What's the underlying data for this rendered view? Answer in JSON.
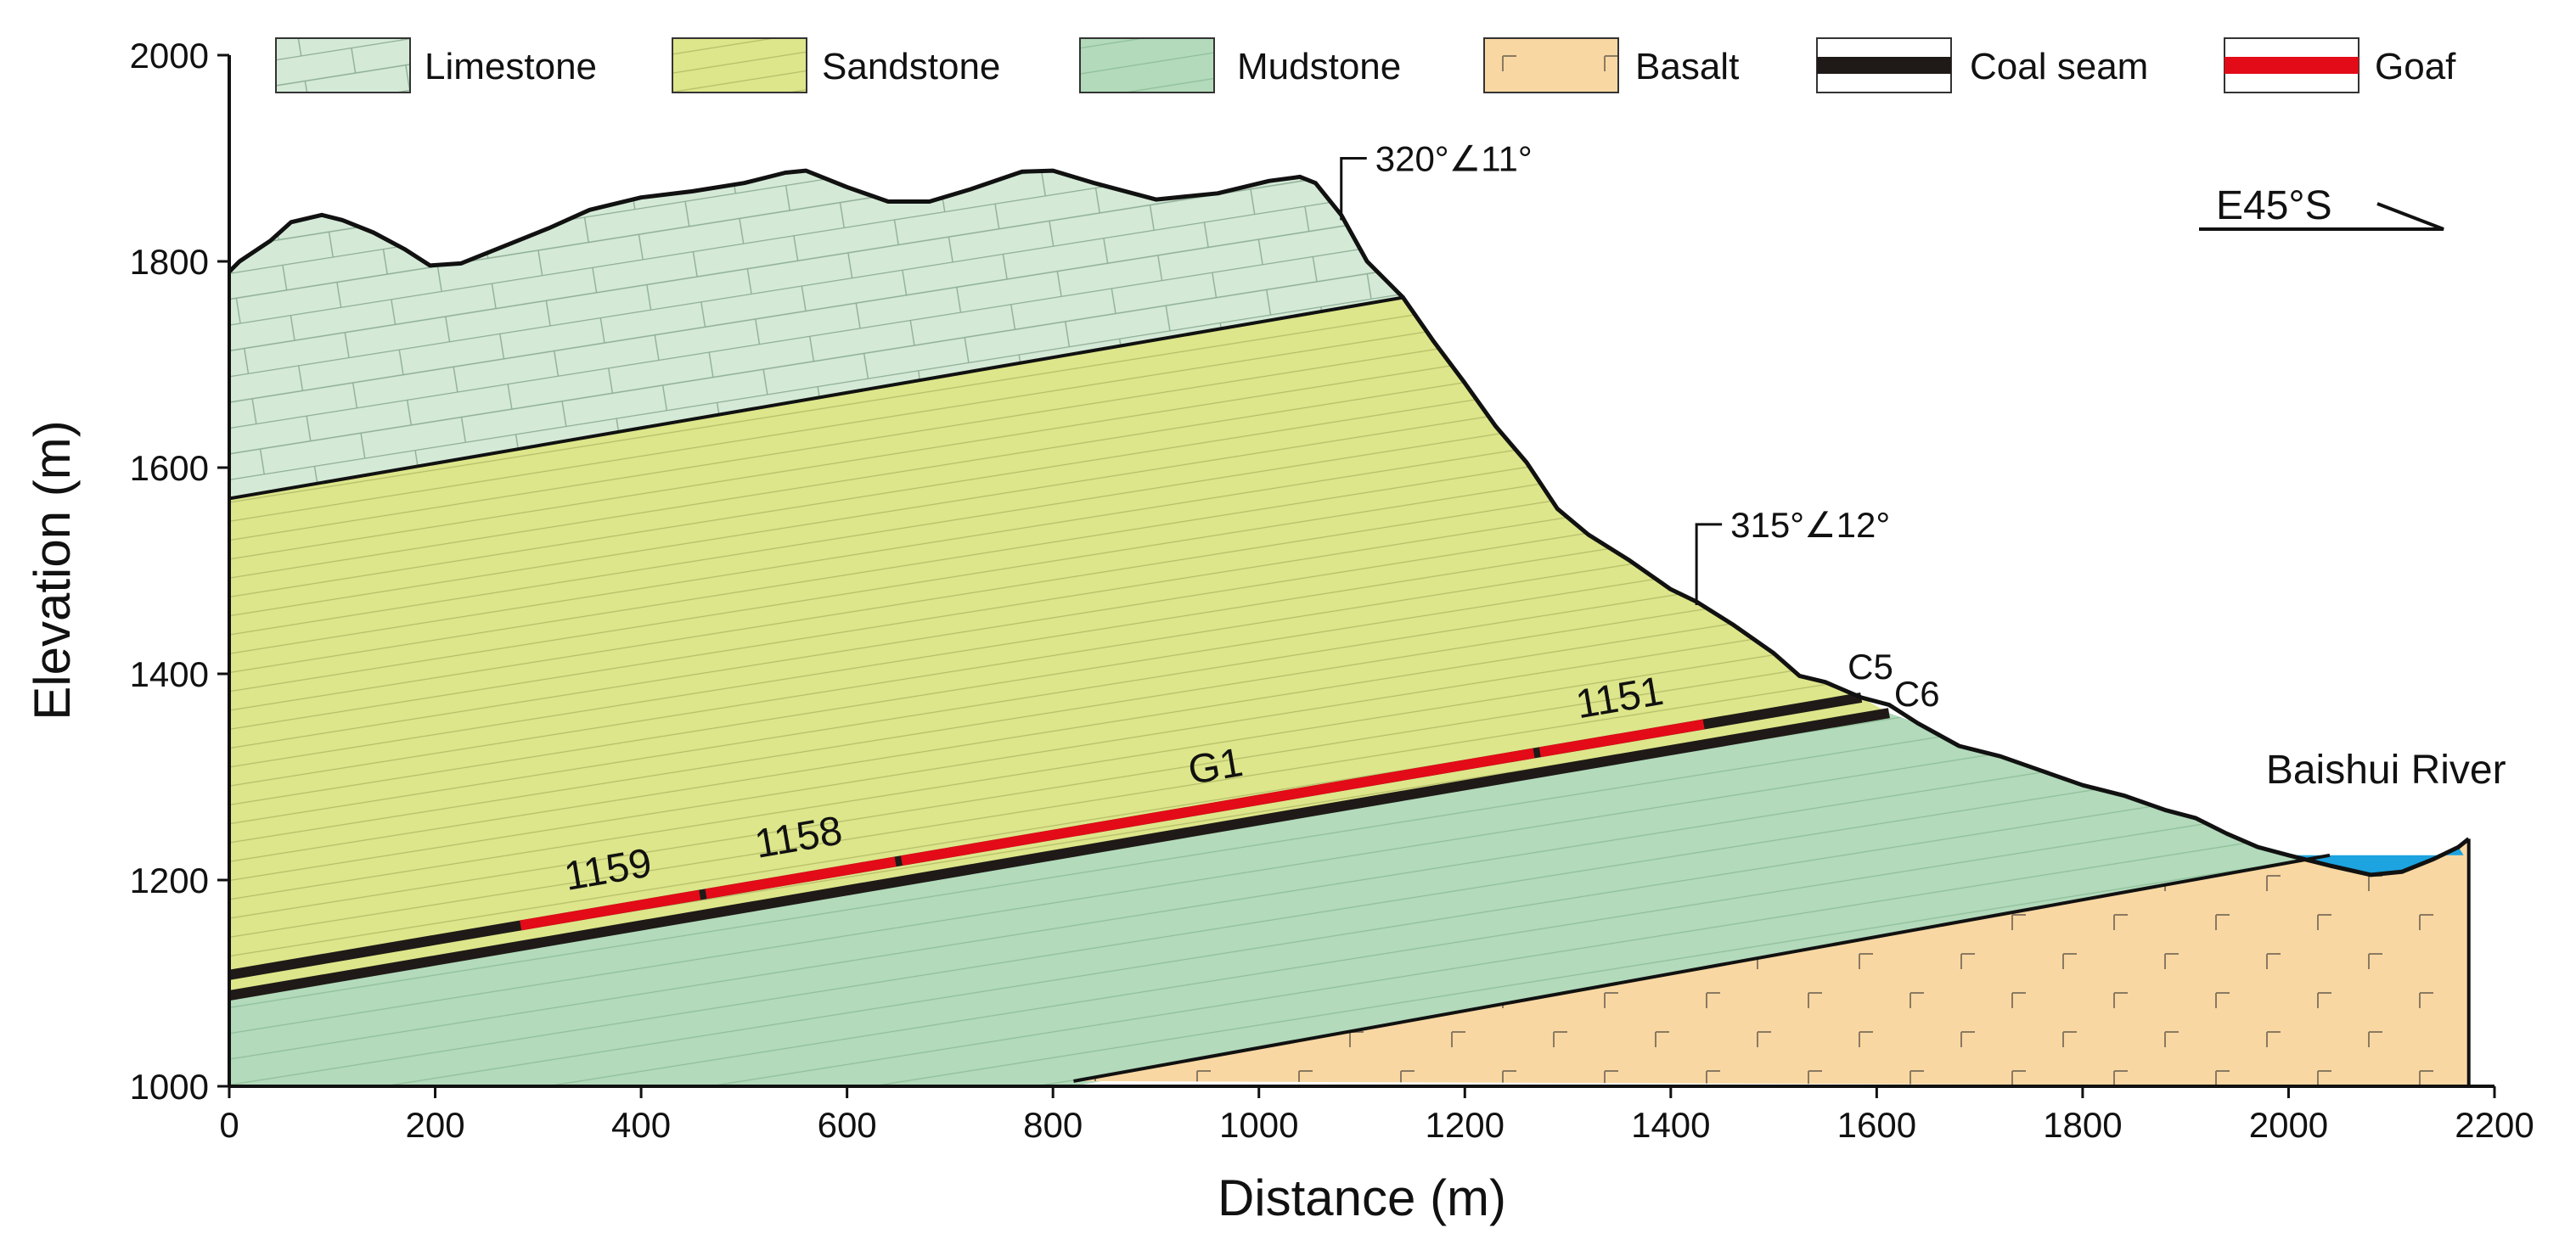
{
  "chart_data": {
    "type": "geologic-cross-section",
    "xlabel": "Distance (m)",
    "ylabel": "Elevation (m)",
    "xlim": [
      0,
      2200
    ],
    "ylim": [
      1000,
      2000
    ],
    "x_ticks": [
      "0",
      "200",
      "400",
      "600",
      "800",
      "1000",
      "1200",
      "1400",
      "1600",
      "1800",
      "2000",
      "2200"
    ],
    "y_ticks": [
      "1000",
      "1200",
      "1400",
      "1600",
      "1800",
      "2000"
    ],
    "legend": [
      {
        "label": "Limestone",
        "color": "#d4ead7"
      },
      {
        "label": "Sandstone",
        "color": "#dde68a"
      },
      {
        "label": "Mudstone",
        "color": "#b2dabb"
      },
      {
        "label": "Basalt",
        "color": "#f9d7a2"
      },
      {
        "label": "Coal seam",
        "color": "#1f1a17"
      },
      {
        "label": "Goaf",
        "color": "#e30b17"
      }
    ],
    "orientation": "E45°S",
    "attitudes": [
      {
        "label": "320°∠11°",
        "x": 1080,
        "y": 1880
      },
      {
        "label": "315°∠12°",
        "x": 1425,
        "y": 1515
      }
    ],
    "seams": [
      {
        "label": "C5",
        "x_start": 0,
        "y_start": 1108,
        "x_end": 1585,
        "y_end": 1377
      },
      {
        "label": "C6",
        "x_start": 0,
        "y_start": 1088,
        "x_end": 1612,
        "y_end": 1362
      }
    ],
    "goaf_panels": [
      {
        "label": "1159",
        "x_start": 280,
        "x_end": 460
      },
      {
        "label": "1158",
        "x_start": 460,
        "x_end": 650
      },
      {
        "label": "G1",
        "x_start": 650,
        "x_end": 1270
      },
      {
        "label": "1151",
        "x_start": 1270,
        "x_end": 1435
      }
    ],
    "river": {
      "label": "Baishui River",
      "x_start": 2000,
      "x_end": 2170,
      "water_level": 1224
    },
    "contacts": {
      "limestone_sandstone": [
        [
          0,
          1570
        ],
        [
          1140,
          1765
        ]
      ],
      "basalt_top": [
        [
          820,
          1005
        ],
        [
          2040,
          1224
        ]
      ]
    },
    "topography": [
      [
        0,
        1790
      ],
      [
        10,
        1800
      ],
      [
        40,
        1820
      ],
      [
        60,
        1838
      ],
      [
        90,
        1845
      ],
      [
        110,
        1840
      ],
      [
        140,
        1828
      ],
      [
        170,
        1812
      ],
      [
        195,
        1796
      ],
      [
        225,
        1798
      ],
      [
        260,
        1812
      ],
      [
        310,
        1832
      ],
      [
        350,
        1850
      ],
      [
        400,
        1862
      ],
      [
        450,
        1868
      ],
      [
        500,
        1876
      ],
      [
        540,
        1886
      ],
      [
        560,
        1888
      ],
      [
        600,
        1872
      ],
      [
        640,
        1858
      ],
      [
        680,
        1858
      ],
      [
        720,
        1870
      ],
      [
        770,
        1887
      ],
      [
        800,
        1888
      ],
      [
        840,
        1876
      ],
      [
        900,
        1860
      ],
      [
        960,
        1866
      ],
      [
        1010,
        1878
      ],
      [
        1040,
        1882
      ],
      [
        1055,
        1876
      ],
      [
        1080,
        1845
      ],
      [
        1105,
        1800
      ],
      [
        1140,
        1765
      ],
      [
        1170,
        1722
      ],
      [
        1200,
        1682
      ],
      [
        1230,
        1640
      ],
      [
        1260,
        1605
      ],
      [
        1290,
        1560
      ],
      [
        1320,
        1535
      ],
      [
        1360,
        1510
      ],
      [
        1400,
        1482
      ],
      [
        1425,
        1470
      ],
      [
        1460,
        1448
      ],
      [
        1500,
        1420
      ],
      [
        1525,
        1398
      ],
      [
        1550,
        1392
      ],
      [
        1585,
        1377
      ],
      [
        1612,
        1370
      ],
      [
        1640,
        1352
      ],
      [
        1680,
        1330
      ],
      [
        1720,
        1320
      ],
      [
        1760,
        1306
      ],
      [
        1800,
        1292
      ],
      [
        1840,
        1282
      ],
      [
        1880,
        1268
      ],
      [
        1910,
        1260
      ],
      [
        1940,
        1245
      ],
      [
        1970,
        1232
      ],
      [
        2000,
        1224
      ],
      [
        2040,
        1214
      ],
      [
        2080,
        1205
      ],
      [
        2110,
        1208
      ],
      [
        2140,
        1220
      ],
      [
        2165,
        1232
      ],
      [
        2175,
        1240
      ]
    ]
  }
}
